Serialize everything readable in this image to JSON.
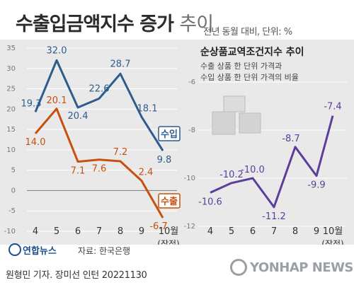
{
  "header": {
    "title_bold": "수출입금액지수 증가",
    "title_light": "추이",
    "subtitle": "전년 동월 대비, 단위: %"
  },
  "chart_data": [
    {
      "type": "line",
      "categories": [
        "4",
        "5",
        "6",
        "7",
        "8",
        "9",
        "10월"
      ],
      "category_sub": [
        "",
        "",
        "",
        "",
        "",
        "",
        "(잠정)"
      ],
      "ylim": [
        -10,
        35
      ],
      "yticks": [
        -10,
        -5,
        0,
        5,
        10,
        15,
        20,
        25,
        30,
        35
      ],
      "grid": true,
      "series": [
        {
          "name": "수입",
          "values": [
            19.3,
            32.0,
            20.4,
            22.6,
            28.7,
            18.1,
            9.8
          ],
          "color": "#2e5c8e"
        },
        {
          "name": "수출",
          "values": [
            14.0,
            20.1,
            7.1,
            7.6,
            7.2,
            2.4,
            -6.7
          ],
          "color": "#c8500e"
        }
      ]
    },
    {
      "type": "line",
      "title": "순상품교역조건지수 추이",
      "subtitle_lines": [
        "수출 상품 한 단위 가격과",
        "수입 상품 한 단위 가격의 비율"
      ],
      "categories": [
        "4",
        "5",
        "6",
        "7",
        "8",
        "9",
        "10월"
      ],
      "category_sub": [
        "",
        "",
        "",
        "",
        "",
        "",
        "(잠정)"
      ],
      "ylim": [
        -12,
        -6
      ],
      "yticks": [
        -12,
        -10,
        -8,
        -6
      ],
      "grid": true,
      "series": [
        {
          "name": "",
          "values": [
            -10.6,
            -10.2,
            -10.0,
            -11.2,
            -8.7,
            -9.9,
            -7.4
          ],
          "color": "#5a3e9a"
        }
      ]
    }
  ],
  "footer": {
    "logo": "연합뉴스",
    "source": "자료: 한국은행",
    "credit": "원형민 기자. 장미선 인턴  20221130",
    "watermark": "YONHAP NEWS"
  },
  "colors": {
    "panel": "#e9e9e9",
    "import": "#2e5c8e",
    "export": "#c8500e",
    "tot": "#5a3e9a"
  }
}
